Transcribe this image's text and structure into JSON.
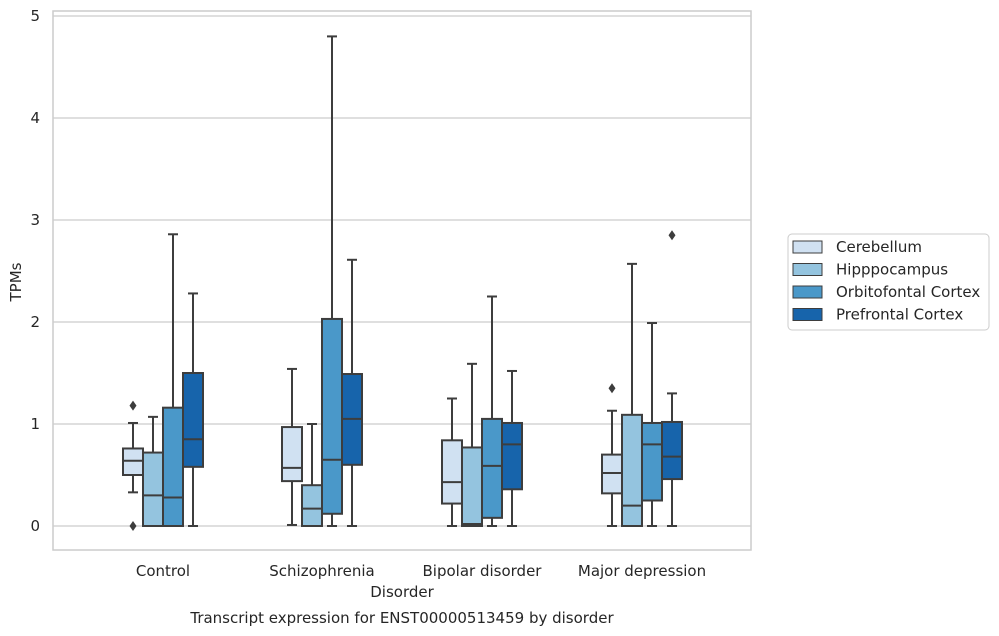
{
  "chart_data": {
    "type": "box",
    "title": "Transcript expression for ENST00000513459 by disorder",
    "xlabel": "Disorder",
    "ylabel": "TPMs",
    "categories": [
      "Control",
      "Schizophrenia",
      "Bipolar disorder",
      "Major depression"
    ],
    "ylim": [
      -0.22,
      5.05
    ],
    "yticks": [
      0,
      1,
      2,
      3,
      4,
      5
    ],
    "grid": "y",
    "legend_position": "right",
    "series": [
      {
        "name": "Cerebellum",
        "color": "#d0e1f2",
        "boxes": [
          {
            "whislo": 0.33,
            "q1": 0.5,
            "med": 0.64,
            "q3": 0.76,
            "whishi": 1.01,
            "fliers": [
              1.18,
              0.0
            ]
          },
          {
            "whislo": 0.01,
            "q1": 0.44,
            "med": 0.57,
            "q3": 0.97,
            "whishi": 1.54,
            "fliers": []
          },
          {
            "whislo": 0.0,
            "q1": 0.22,
            "med": 0.43,
            "q3": 0.84,
            "whishi": 1.25,
            "fliers": []
          },
          {
            "whislo": 0.0,
            "q1": 0.32,
            "med": 0.52,
            "q3": 0.7,
            "whishi": 1.13,
            "fliers": [
              1.35
            ]
          }
        ]
      },
      {
        "name": "Hipppocampus",
        "color": "#94c4df",
        "boxes": [
          {
            "whislo": 0.0,
            "q1": 0.0,
            "med": 0.3,
            "q3": 0.72,
            "whishi": 1.07,
            "fliers": []
          },
          {
            "whislo": 0.0,
            "q1": 0.0,
            "med": 0.17,
            "q3": 0.4,
            "whishi": 1.0,
            "fliers": []
          },
          {
            "whislo": 0.0,
            "q1": 0.0,
            "med": 0.02,
            "q3": 0.77,
            "whishi": 1.59,
            "fliers": []
          },
          {
            "whislo": 0.0,
            "q1": 0.0,
            "med": 0.2,
            "q3": 1.09,
            "whishi": 2.57,
            "fliers": []
          }
        ]
      },
      {
        "name": "Orbitofontal Cortex",
        "color": "#4a98c9",
        "boxes": [
          {
            "whislo": 0.0,
            "q1": 0.0,
            "med": 0.28,
            "q3": 1.16,
            "whishi": 2.86,
            "fliers": []
          },
          {
            "whislo": 0.0,
            "q1": 0.12,
            "med": 0.65,
            "q3": 2.03,
            "whishi": 4.8,
            "fliers": []
          },
          {
            "whislo": 0.0,
            "q1": 0.08,
            "med": 0.59,
            "q3": 1.05,
            "whishi": 2.25,
            "fliers": []
          },
          {
            "whislo": 0.0,
            "q1": 0.25,
            "med": 0.8,
            "q3": 1.01,
            "whishi": 1.99,
            "fliers": []
          }
        ]
      },
      {
        "name": "Prefrontal Cortex",
        "color": "#1764ab",
        "boxes": [
          {
            "whislo": 0.0,
            "q1": 0.58,
            "med": 0.85,
            "q3": 1.5,
            "whishi": 2.28,
            "fliers": []
          },
          {
            "whislo": 0.0,
            "q1": 0.6,
            "med": 1.05,
            "q3": 1.49,
            "whishi": 2.61,
            "fliers": []
          },
          {
            "whislo": 0.0,
            "q1": 0.36,
            "med": 0.8,
            "q3": 1.01,
            "whishi": 1.52,
            "fliers": []
          },
          {
            "whislo": 0.0,
            "q1": 0.46,
            "med": 0.68,
            "q3": 1.02,
            "whishi": 1.3,
            "fliers": [
              2.85
            ]
          }
        ]
      }
    ]
  }
}
